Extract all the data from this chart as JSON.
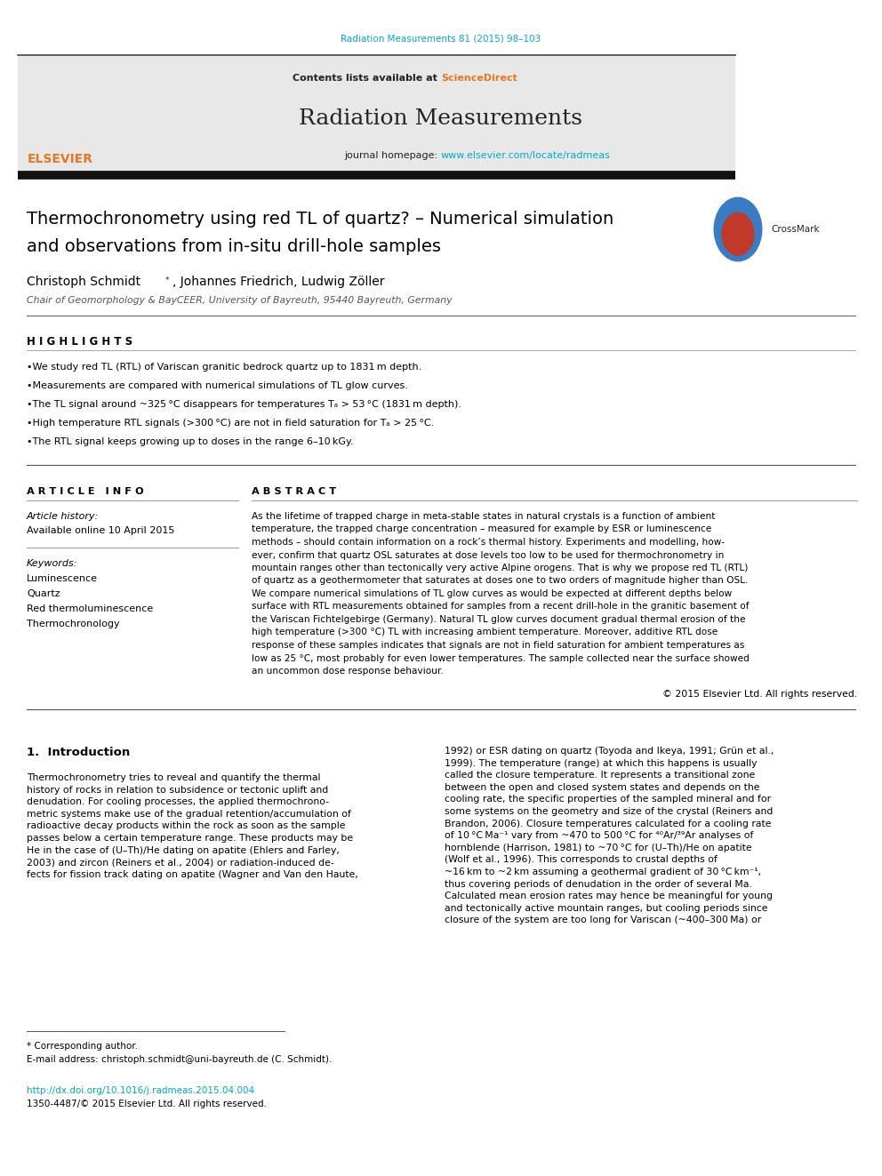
{
  "page_width": 9.92,
  "page_height": 13.23,
  "bg_color": "#ffffff",
  "journal_ref": "Radiation Measurements 81 (2015) 98–103",
  "journal_ref_color": "#00aacc",
  "journal_name": "Radiation Measurements",
  "contents_text": "Contents lists available at ",
  "sciencedirect_text": "ScienceDirect",
  "sciencedirect_color": "#e87722",
  "homepage_text": "journal homepage: ",
  "homepage_url": "www.elsevier.com/locate/radmeas",
  "homepage_url_color": "#00aacc",
  "header_bg": "#e8e8e8",
  "title_line1": "Thermochronometry using red TL of quartz? – Numerical simulation",
  "title_line2": "and observations from in-situ drill-hole samples",
  "affiliation": "Chair of Geomorphology & BayCEER, University of Bayreuth, 95440 Bayreuth, Germany",
  "highlights_label": "H I G H L I G H T S",
  "highlights": [
    "We study red TL (RTL) of Variscan granitic bedrock quartz up to 1831 m depth.",
    "Measurements are compared with numerical simulations of TL glow curves.",
    "The TL signal around ~325 °C disappears for temperatures Tₐ > 53 °C (1831 m depth).",
    "High temperature RTL signals (>300 °C) are not in field saturation for Tₐ > 25 °C.",
    "The RTL signal keeps growing up to doses in the range 6–10 kGy."
  ],
  "article_info_label": "A R T I C L E   I N F O",
  "article_history_label": "Article history:",
  "available_online": "Available online 10 April 2015",
  "keywords_label": "Keywords:",
  "keywords": [
    "Luminescence",
    "Quartz",
    "Red thermoluminescence",
    "Thermochronology"
  ],
  "abstract_label": "A B S T R A C T",
  "abstract_text": "As the lifetime of trapped charge in meta-stable states in natural crystals is a function of ambient temperature, the trapped charge concentration – measured for example by ESR or luminescence methods – should contain information on a rock’s thermal history. Experiments and modelling, however, confirm that quartz OSL saturates at dose levels too low to be used for thermochronometry in mountain ranges other than tectonically very active Alpine orogens. That is why we propose red TL (RTL) of quartz as a geothermometer that saturates at doses one to two orders of magnitude higher than OSL. We compare numerical simulations of TL glow curves as would be expected at different depths below surface with RTL measurements obtained for samples from a recent drill-hole in the granitic basement of the Variscan Fichtelgebirge (Germany). Natural TL glow curves document gradual thermal erosion of the high temperature (>300 °C) TL with increasing ambient temperature. Moreover, additive RTL dose response of these samples indicates that signals are not in field saturation for ambient temperatures as low as 25 °C, most probably for even lower temperatures. The sample collected near the surface showed an uncommon dose response behaviour.",
  "copyright": "© 2015 Elsevier Ltd. All rights reserved.",
  "intro_label": "1.  Introduction",
  "intro_text1": "Thermochronometry tries to reveal and quantify the thermal\nhistory of rocks in relation to subsidence or tectonic uplift and\ndenudation. For cooling processes, the applied thermochrono-\nmetric systems make use of the gradual retention/accumulation of\nradioactive decay products within the rock as soon as the sample\npasses below a certain temperature range. These products may be\nHe in the case of (U–Th)/He dating on apatite (Ehlers and Farley,\n2003) and zircon (Reiners et al., 2004) or radiation-induced de-\nfects for fission track dating on apatite (Wagner and Van den Haute,",
  "intro_text2": "1992) or ESR dating on quartz (Toyoda and Ikeya, 1991; Grün et al.,\n1999). The temperature (range) at which this happens is usually\ncalled the closure temperature. It represents a transitional zone\nbetween the open and closed system states and depends on the\ncooling rate, the specific properties of the sampled mineral and for\nsome systems on the geometry and size of the crystal (Reiners and\nBrandon, 2006). Closure temperatures calculated for a cooling rate\nof 10 °C Ma⁻¹ vary from ~470 to 500 °C for ⁴⁰Ar/³⁹Ar analyses of\nhornblende (Harrison, 1981) to ~70 °C for (U–Th)/He on apatite\n(Wolf et al., 1996). This corresponds to crustal depths of\n~16 km to ~2 km assuming a geothermal gradient of 30 °C km⁻¹,\nthus covering periods of denudation in the order of several Ma.\nCalculated mean erosion rates may hence be meaningful for young\nand tectonically active mountain ranges, but cooling periods since\nclosure of the system are too long for Variscan (~400–300 Ma) or",
  "footnote_corresponding": "* Corresponding author.",
  "footnote_email": "E-mail address: christoph.schmidt@uni-bayreuth.de (C. Schmidt).",
  "doi_text": "http://dx.doi.org/10.1016/j.radmeas.2015.04.004",
  "issn_text": "1350-4487/© 2015 Elsevier Ltd. All rights reserved.",
  "elsevier_color": "#e87722",
  "black": "#000000",
  "dark_gray": "#222222",
  "medium_gray": "#555555",
  "light_gray": "#888888"
}
